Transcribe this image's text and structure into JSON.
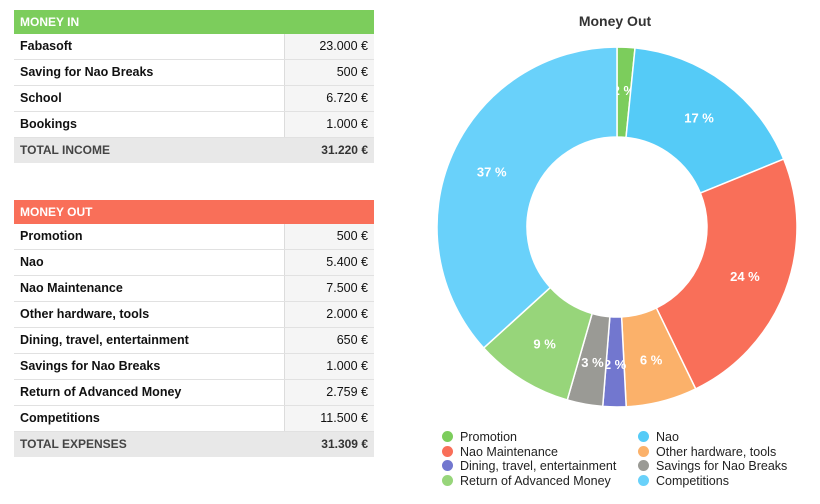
{
  "income": {
    "header": "MONEY IN",
    "rows": [
      {
        "name": "Fabasoft",
        "value": "23.000 €"
      },
      {
        "name": "Saving for Nao Breaks",
        "value": "500 €"
      },
      {
        "name": "School",
        "value": "6.720 €"
      },
      {
        "name": "Bookings",
        "value": "1.000 €"
      }
    ],
    "total_label": "TOTAL INCOME",
    "total_value": "31.220 €"
  },
  "expenses": {
    "header": "MONEY OUT",
    "rows": [
      {
        "name": "Promotion",
        "value": "500 €"
      },
      {
        "name": "Nao",
        "value": "5.400 €"
      },
      {
        "name": "Nao Maintenance",
        "value": "7.500 €"
      },
      {
        "name": "Other hardware, tools",
        "value": "2.000 €"
      },
      {
        "name": "Dining, travel, entertainment",
        "value": "650 €"
      },
      {
        "name": "Savings for Nao Breaks",
        "value": "1.000 €"
      },
      {
        "name": "Return of Advanced Money",
        "value": "2.759 €"
      },
      {
        "name": "Competitions",
        "value": "11.500 €"
      }
    ],
    "total_label": "TOTAL EXPENSES",
    "total_value": "31.309 €"
  },
  "chart_data": {
    "type": "pie",
    "title": "Money Out",
    "donut": true,
    "slices": [
      {
        "label": "Promotion",
        "value": 500,
        "percent_label": "2 %",
        "color": "#7ccd5c"
      },
      {
        "label": "Nao",
        "value": 5400,
        "percent_label": "17 %",
        "color": "#55cbf7"
      },
      {
        "label": "Nao Maintenance",
        "value": 7500,
        "percent_label": "24 %",
        "color": "#f96f59"
      },
      {
        "label": "Other hardware, tools",
        "value": 2000,
        "percent_label": "6 %",
        "color": "#fbb16a"
      },
      {
        "label": "Dining, travel, entertainment",
        "value": 650,
        "percent_label": "2 %",
        "color": "#7277cf"
      },
      {
        "label": "Savings for Nao Breaks",
        "value": 1000,
        "percent_label": "3 %",
        "color": "#9a9a95"
      },
      {
        "label": "Return of Advanced Money",
        "value": 2759,
        "percent_label": "9 %",
        "color": "#97d57a"
      },
      {
        "label": "Competitions",
        "value": 11500,
        "percent_label": "37 %",
        "color": "#69d1fa"
      }
    ],
    "legend_position": "bottom"
  }
}
